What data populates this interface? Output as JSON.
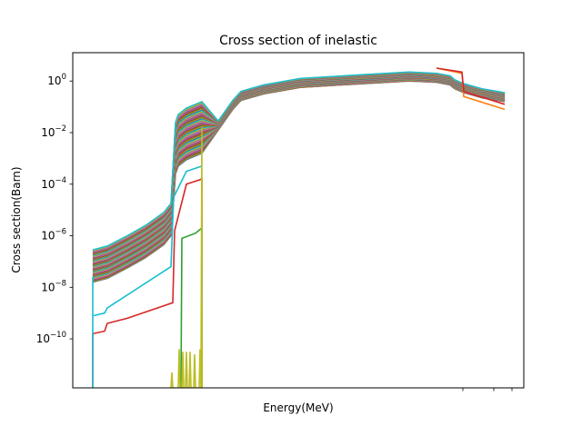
{
  "chart_data": {
    "type": "line",
    "title": "Cross section of inelastic",
    "xlabel": "Energy(MeV)",
    "ylabel": "Cross section(Barn)",
    "yscale": "log",
    "ylim_log10": [
      -11.9,
      1.1
    ],
    "grid": false,
    "legend": "none",
    "y_ticks": [
      {
        "exp": 0,
        "base": "10",
        "sup": "0"
      },
      {
        "exp": -2,
        "base": "10",
        "sup": "−2"
      },
      {
        "exp": -4,
        "base": "10",
        "sup": "−4"
      },
      {
        "exp": -6,
        "base": "10",
        "sup": "−6"
      },
      {
        "exp": -8,
        "base": "10",
        "sup": "−8"
      },
      {
        "exp": -10,
        "base": "10",
        "sup": "−10"
      }
    ],
    "x_tick_marks": 3,
    "colors": [
      "#1f77b4",
      "#ff7f0e",
      "#2ca02c",
      "#d62728",
      "#9467bd",
      "#8c564b",
      "#e377c2",
      "#7f7f7f",
      "#bcbd22",
      "#17becf"
    ],
    "series_count": 60,
    "note_series": "curves estimated from figure; values are log10 of cross section in barn"
  }
}
